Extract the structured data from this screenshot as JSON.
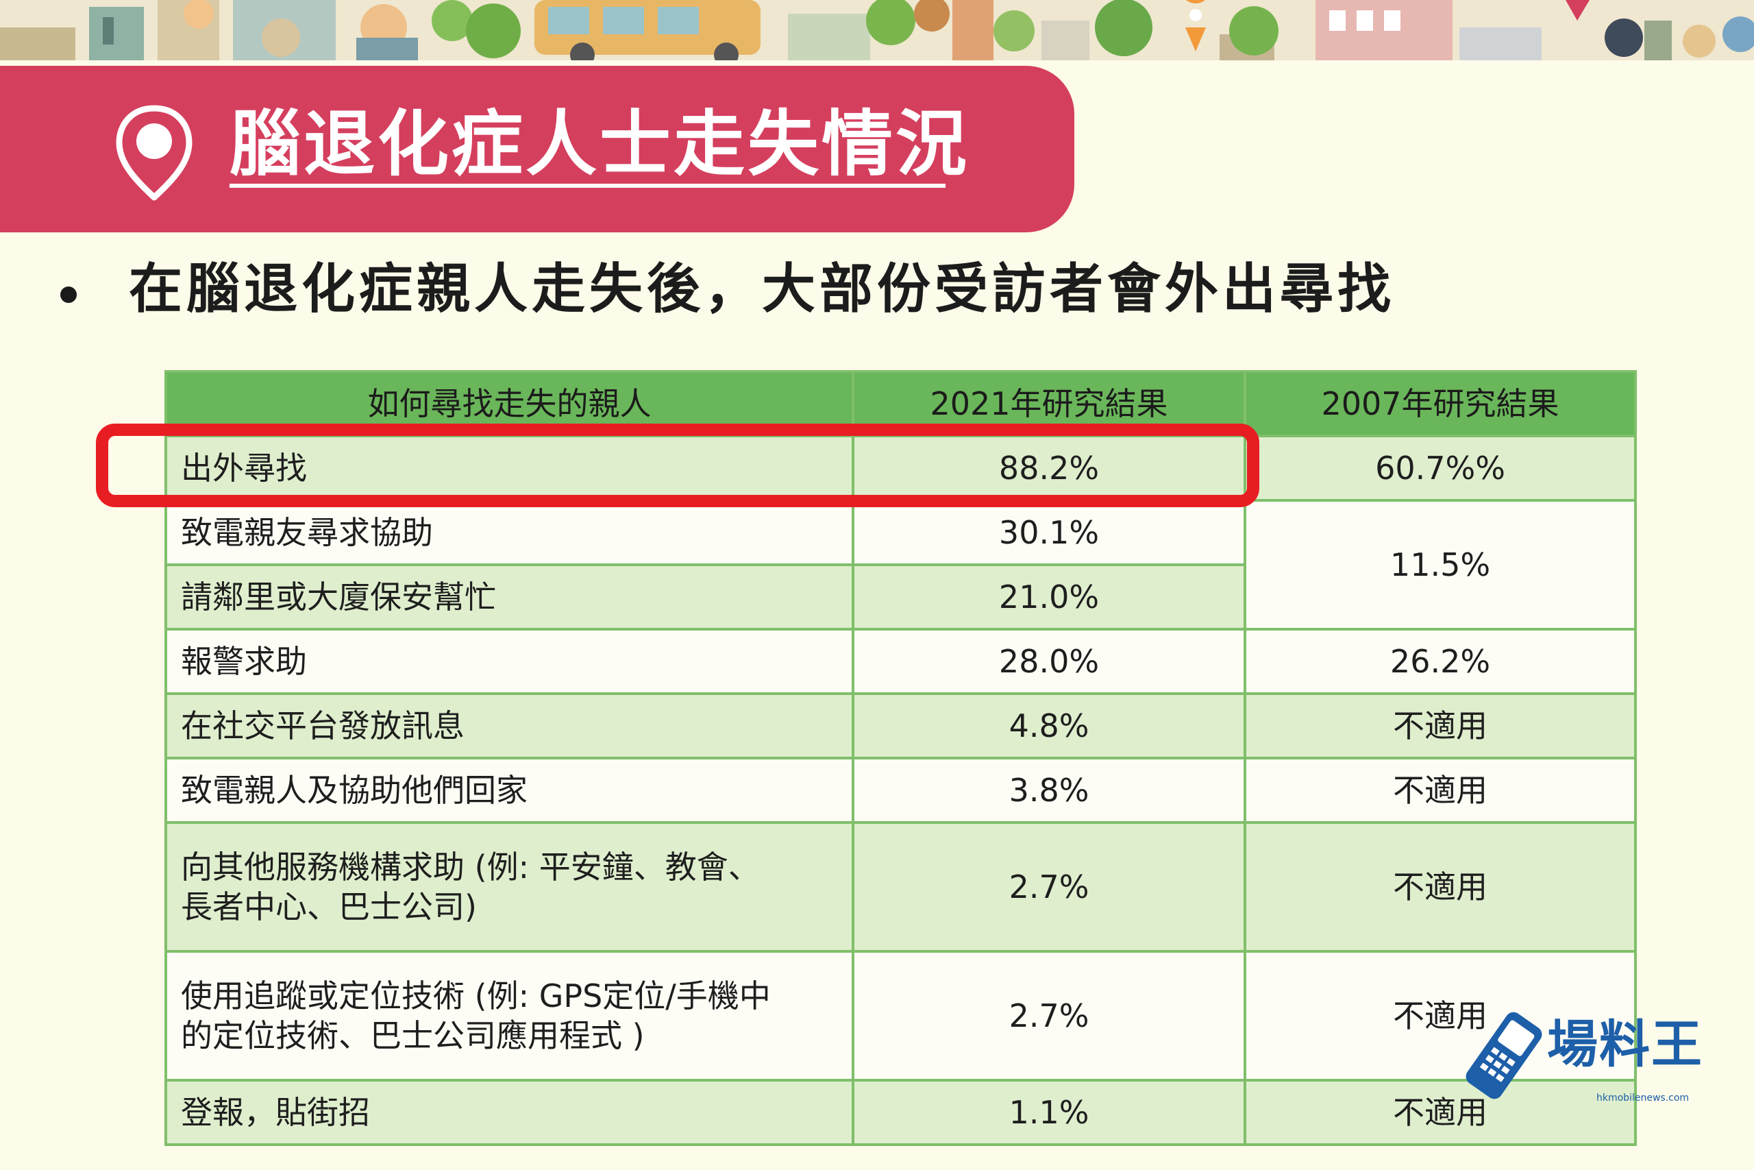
{
  "title": "腦退化症人士走失情況",
  "bullet": "在腦退化症親人走失後，大部份受訪者會外出尋找",
  "table": {
    "headers": [
      "如何尋找走失的親人",
      "2021年研究結果",
      "2007年研究結果"
    ],
    "rows": [
      {
        "label": "出外尋找",
        "y2021": "88.2%",
        "y2007": "60.7%%"
      },
      {
        "label": "致電親友尋求協助",
        "y2021": "30.1%",
        "y2007": "11.5%"
      },
      {
        "label": "請鄰里或大廈保安幫忙",
        "y2021": "21.0%"
      },
      {
        "label": "報警求助",
        "y2021": "28.0%",
        "y2007": "26.2%"
      },
      {
        "label": "在社交平台發放訊息",
        "y2021": "4.8%",
        "y2007": "不適用"
      },
      {
        "label": "致電親人及協助他們回家",
        "y2021": "3.8%",
        "y2007": "不適用"
      },
      {
        "label_line1": "向其他服務機構求助 (例: 平安鐘、教會、",
        "label_line2": "長者中心、巴士公司)",
        "y2021": "2.7%",
        "y2007": "不適用"
      },
      {
        "label_line1": "使用追蹤或定位技術 (例: GPS定位/手機中",
        "label_line2": "的定位技術、巴士公司應用程式 )",
        "y2021": "2.7%",
        "y2007": "不適用"
      },
      {
        "label": "登報，貼街招",
        "y2021": "1.1%",
        "y2007": "不適用"
      }
    ]
  },
  "watermark": {
    "brand": "場料王",
    "url": "hkmobilenews.com"
  },
  "colors": {
    "ribbon": "#d53f5e",
    "table_header": "#6ab65a",
    "row_green": "#dfeecd",
    "highlight": "#e81d23",
    "watermark": "#1d5fa8"
  }
}
